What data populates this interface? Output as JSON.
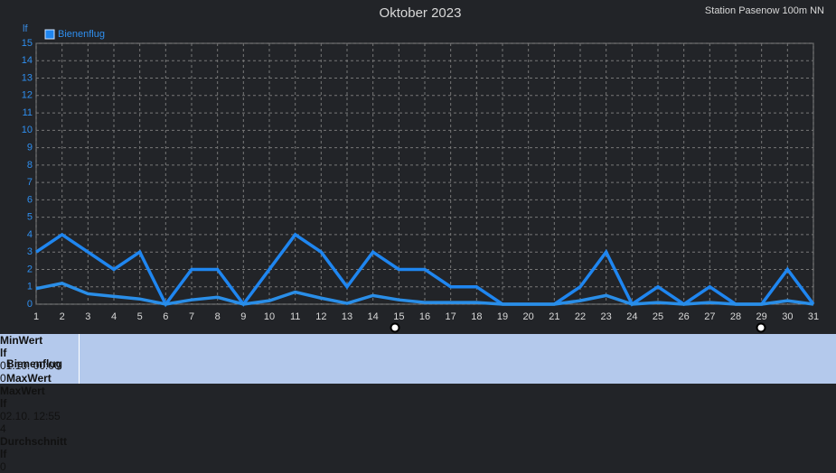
{
  "chart_data": {
    "type": "line",
    "title": "Oktober 2023",
    "subtitle": "Station Pasenow 100m NN",
    "y_label": "lf",
    "x": [
      1,
      2,
      3,
      4,
      5,
      6,
      7,
      8,
      9,
      10,
      11,
      12,
      13,
      14,
      15,
      16,
      17,
      18,
      19,
      20,
      21,
      22,
      23,
      24,
      25,
      26,
      27,
      28,
      29,
      30,
      31
    ],
    "xlim": [
      1,
      31
    ],
    "xticks": [
      1,
      2,
      3,
      4,
      5,
      6,
      7,
      8,
      9,
      10,
      11,
      12,
      13,
      14,
      15,
      16,
      17,
      18,
      19,
      20,
      21,
      22,
      23,
      24,
      25,
      26,
      27,
      28,
      29,
      30,
      31
    ],
    "ylim": [
      0,
      15
    ],
    "yticks": [
      0,
      1,
      2,
      3,
      4,
      5,
      6,
      7,
      8,
      9,
      10,
      11,
      12,
      13,
      14,
      15
    ],
    "grid": true,
    "series": [
      {
        "name": "Bienenflug",
        "color": "#1f86f0",
        "values": [
          3,
          4,
          3,
          2,
          3,
          0,
          2,
          2,
          0,
          2,
          4,
          3,
          1,
          3,
          2,
          2,
          1,
          1,
          0,
          0,
          0,
          1,
          3,
          0,
          1,
          0,
          1,
          0,
          0,
          2,
          0
        ]
      },
      {
        "color": "#2a8ee8",
        "values": [
          0.9,
          1.2,
          0.6,
          0.45,
          0.3,
          0,
          0.25,
          0.4,
          0,
          0.2,
          0.7,
          0.35,
          0.05,
          0.5,
          0.25,
          0.1,
          0.1,
          0.1,
          0,
          0,
          0,
          0.2,
          0.5,
          0,
          0.1,
          0,
          0.1,
          0,
          0,
          0.2,
          0
        ]
      }
    ]
  },
  "stats": {
    "label": [
      "Bienenflug",
      "MaxWert"
    ],
    "columns": [
      {
        "header": "MinWert",
        "unit": "lf",
        "date": "01.10.  00:00",
        "value": 0
      },
      {
        "header": "MaxWert",
        "unit": "lf",
        "date": "02.10.  12:55",
        "value": 4
      },
      {
        "header": "Durchschnitt",
        "unit": "lf",
        "value": 0
      }
    ]
  }
}
